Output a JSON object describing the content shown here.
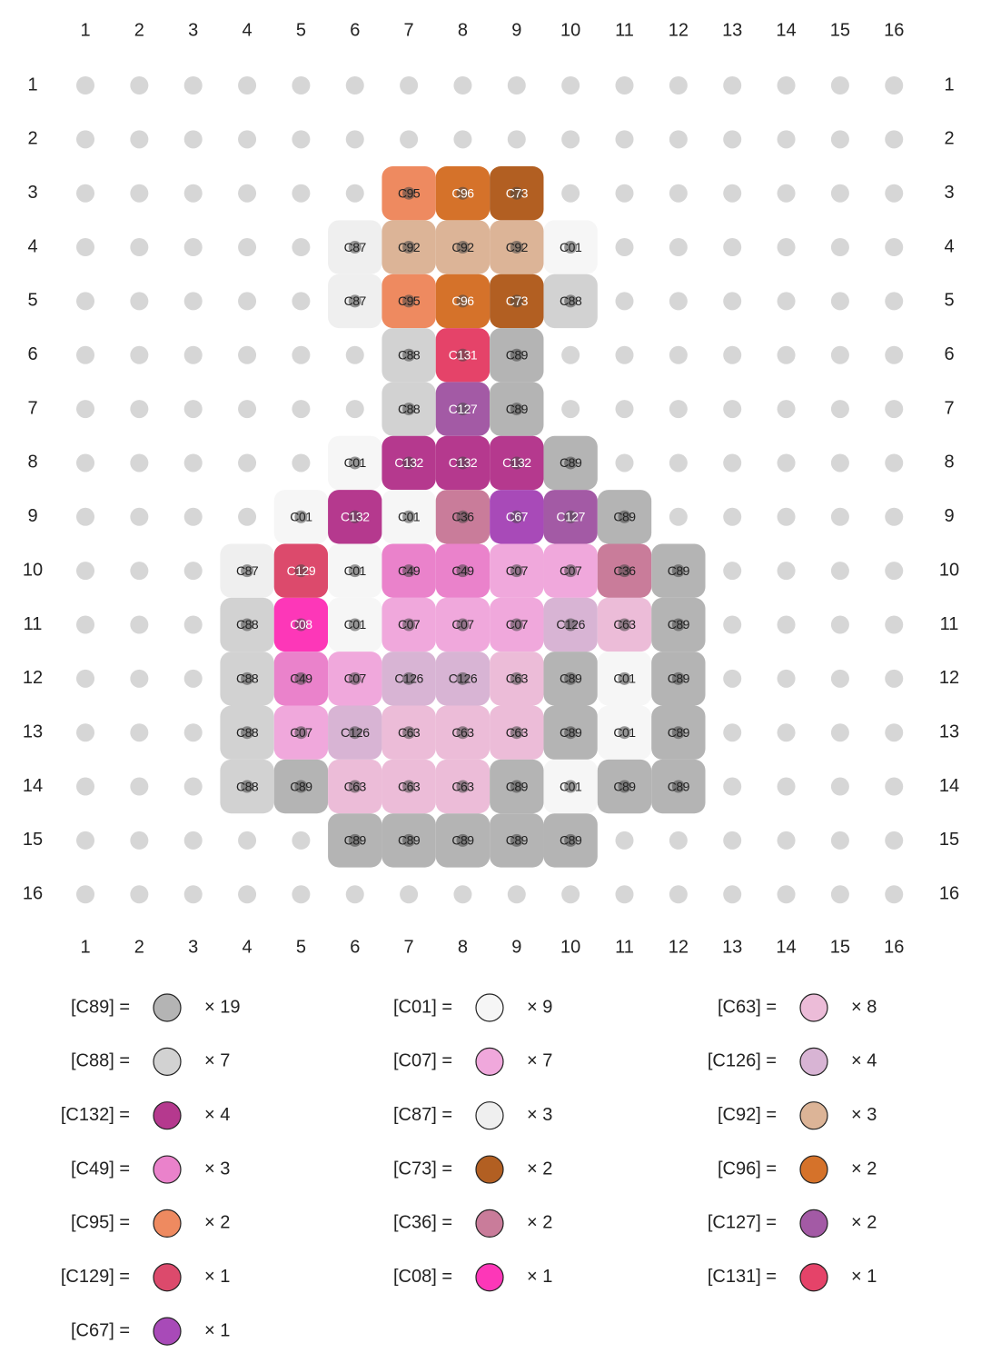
{
  "columns": [
    1,
    2,
    3,
    4,
    5,
    6,
    7,
    8,
    9,
    10,
    11,
    12,
    13,
    14,
    15,
    16
  ],
  "rows": [
    1,
    2,
    3,
    4,
    5,
    6,
    7,
    8,
    9,
    10,
    11,
    12,
    13,
    14,
    15,
    16
  ],
  "grid": [
    [
      null,
      null,
      null,
      null,
      null,
      null,
      null,
      null,
      null,
      null,
      null,
      null,
      null,
      null,
      null,
      null
    ],
    [
      null,
      null,
      null,
      null,
      null,
      null,
      null,
      null,
      null,
      null,
      null,
      null,
      null,
      null,
      null,
      null
    ],
    [
      null,
      null,
      null,
      null,
      null,
      null,
      "C95",
      "C96",
      "C73",
      null,
      null,
      null,
      null,
      null,
      null,
      null
    ],
    [
      null,
      null,
      null,
      null,
      null,
      "C87",
      "C92",
      "C92",
      "C92",
      "C01",
      null,
      null,
      null,
      null,
      null,
      null
    ],
    [
      null,
      null,
      null,
      null,
      null,
      "C87",
      "C95",
      "C96",
      "C73",
      "C88",
      null,
      null,
      null,
      null,
      null,
      null
    ],
    [
      null,
      null,
      null,
      null,
      null,
      null,
      "C88",
      "C131",
      "C89",
      null,
      null,
      null,
      null,
      null,
      null,
      null
    ],
    [
      null,
      null,
      null,
      null,
      null,
      null,
      "C88",
      "C127",
      "C89",
      null,
      null,
      null,
      null,
      null,
      null,
      null
    ],
    [
      null,
      null,
      null,
      null,
      null,
      "C01",
      "C132",
      "C132",
      "C132",
      "C89",
      null,
      null,
      null,
      null,
      null,
      null
    ],
    [
      null,
      null,
      null,
      null,
      "C01",
      "C132",
      "C01",
      "C36",
      "C67",
      "C127",
      "C89",
      null,
      null,
      null,
      null,
      null
    ],
    [
      null,
      null,
      null,
      "C87",
      "C129",
      "C01",
      "C49",
      "C49",
      "C07",
      "C07",
      "C36",
      "C89",
      null,
      null,
      null,
      null
    ],
    [
      null,
      null,
      null,
      "C88",
      "C08",
      "C01",
      "C07",
      "C07",
      "C07",
      "C126",
      "C63",
      "C89",
      null,
      null,
      null,
      null
    ],
    [
      null,
      null,
      null,
      "C88",
      "C49",
      "C07",
      "C126",
      "C126",
      "C63",
      "C89",
      "C01",
      "C89",
      null,
      null,
      null,
      null
    ],
    [
      null,
      null,
      null,
      "C88",
      "C07",
      "C126",
      "C63",
      "C63",
      "C63",
      "C89",
      "C01",
      "C89",
      null,
      null,
      null,
      null
    ],
    [
      null,
      null,
      null,
      "C88",
      "C89",
      "C63",
      "C63",
      "C63",
      "C89",
      "C01",
      "C89",
      "C89",
      null,
      null,
      null,
      null
    ],
    [
      null,
      null,
      null,
      null,
      null,
      "C89",
      "C89",
      "C89",
      "C89",
      "C89",
      null,
      null,
      null,
      null,
      null,
      null
    ],
    [
      null,
      null,
      null,
      null,
      null,
      null,
      null,
      null,
      null,
      null,
      null,
      null,
      null,
      null,
      null,
      null
    ]
  ],
  "legend": [
    {
      "label": "[C89] =",
      "code": "C89",
      "color": "#b4b4b4",
      "count": "× 19"
    },
    {
      "label": "[C01] =",
      "code": "C01",
      "color": "#f6f6f6",
      "count": "× 9"
    },
    {
      "label": "[C63] =",
      "code": "C63",
      "color": "#ecbcd8",
      "count": "× 8"
    },
    {
      "label": "[C88] =",
      "code": "C88",
      "color": "#d2d2d2",
      "count": "× 7"
    },
    {
      "label": "[C07] =",
      "code": "C07",
      "color": "#f0a8dc",
      "count": "× 7"
    },
    {
      "label": "[C126] =",
      "code": "C126",
      "color": "#d8b4d4",
      "count": "× 4"
    },
    {
      "label": "[C132] =",
      "code": "C132",
      "color": "#b5398e",
      "count": "× 4"
    },
    {
      "label": "[C87] =",
      "code": "C87",
      "color": "#efefef",
      "count": "× 3"
    },
    {
      "label": "[C92] =",
      "code": "C92",
      "color": "#dcb497",
      "count": "× 3"
    },
    {
      "label": "[C49] =",
      "code": "C49",
      "color": "#ea82cb",
      "count": "× 3"
    },
    {
      "label": "[C73] =",
      "code": "C73",
      "color": "#b25f22",
      "count": "× 2"
    },
    {
      "label": "[C96] =",
      "code": "C96",
      "color": "#d5722a",
      "count": "× 2"
    },
    {
      "label": "[C95] =",
      "code": "C95",
      "color": "#ee8a60",
      "count": "× 2"
    },
    {
      "label": "[C36] =",
      "code": "C36",
      "color": "#c97c9a",
      "count": "× 2"
    },
    {
      "label": "[C127] =",
      "code": "C127",
      "color": "#a35aa5",
      "count": "× 2"
    },
    {
      "label": "[C129] =",
      "code": "C129",
      "color": "#dc4a6c",
      "count": "× 1"
    },
    {
      "label": "[C08] =",
      "code": "C08",
      "color": "#fd37b8",
      "count": "× 1"
    },
    {
      "label": "[C131] =",
      "code": "C131",
      "color": "#e54369",
      "count": "× 1"
    },
    {
      "label": "[C67] =",
      "code": "C67",
      "color": "#a84ab8",
      "count": "× 1"
    }
  ]
}
